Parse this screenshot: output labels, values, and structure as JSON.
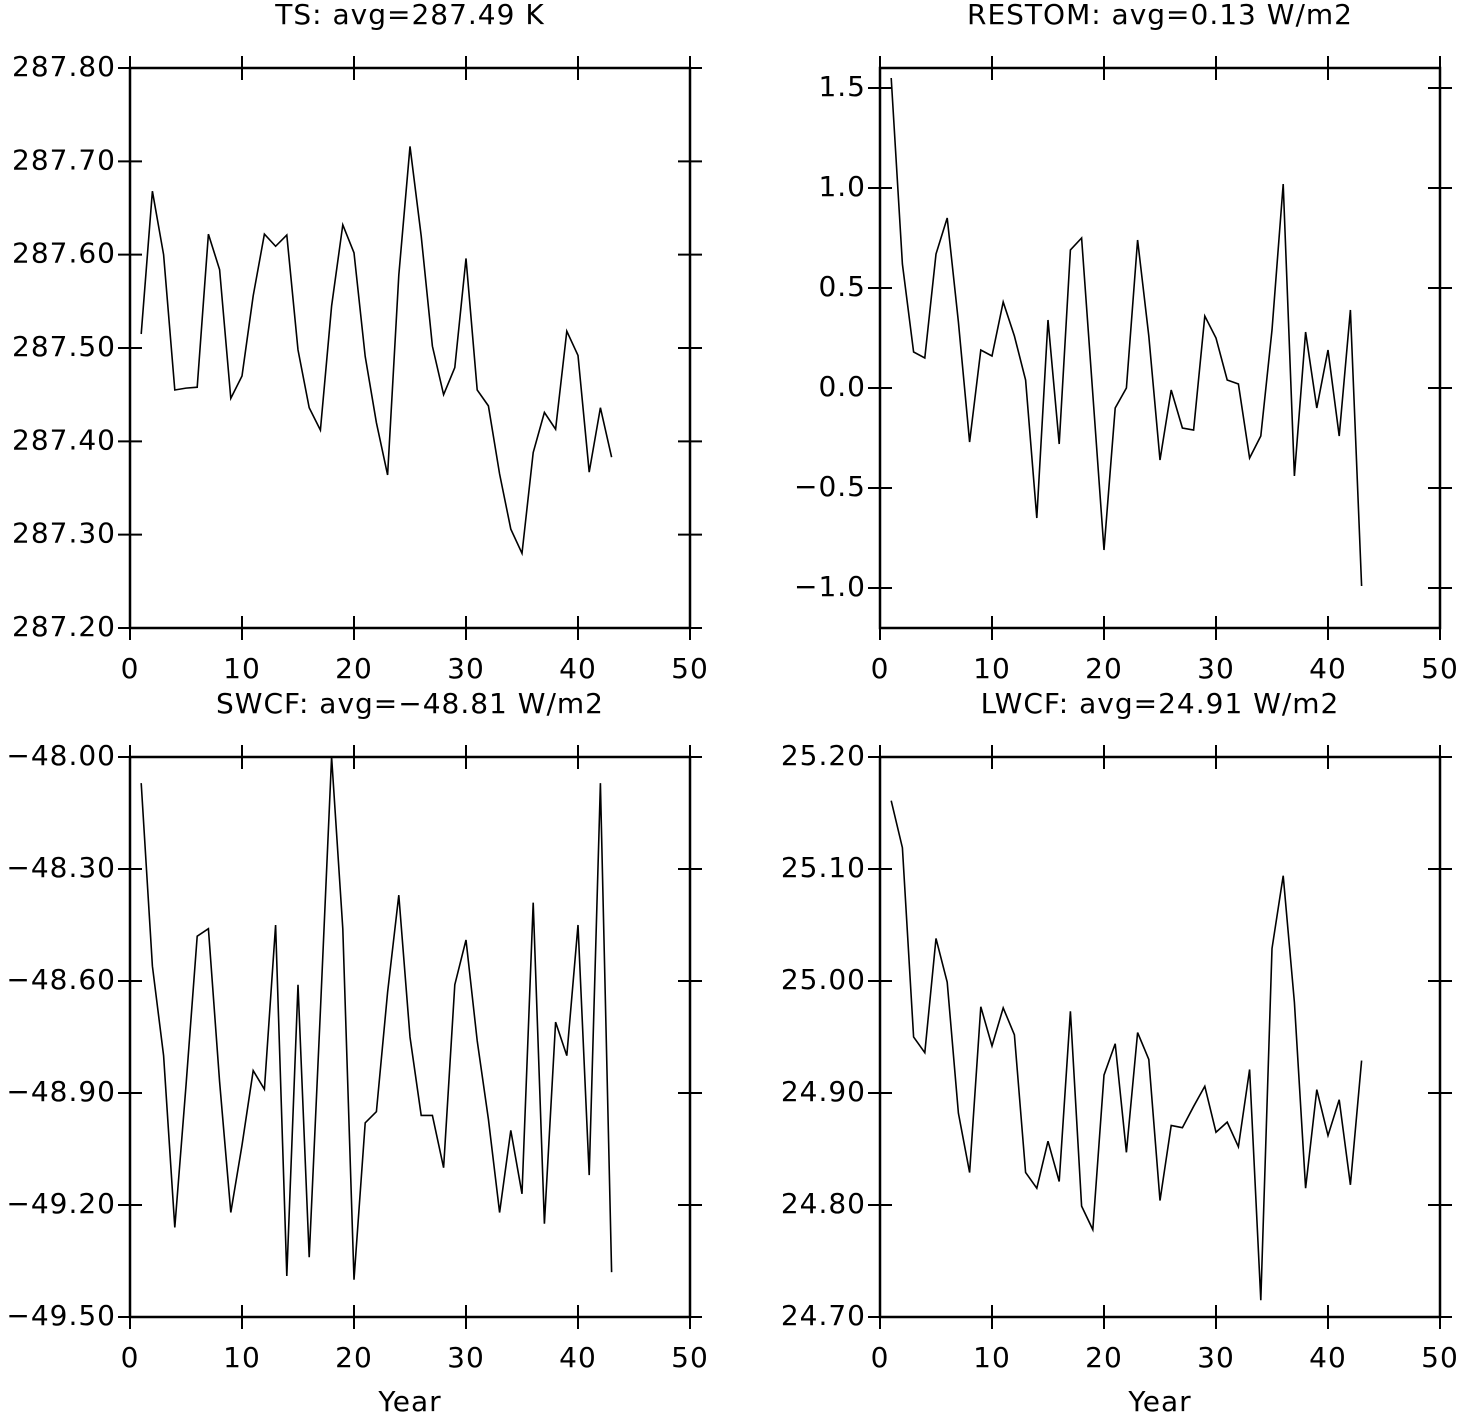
{
  "chart_data": [
    {
      "type": "line",
      "title": "TS: avg=287.49 K",
      "color": "#000000",
      "x": [
        1,
        2,
        3,
        4,
        5,
        6,
        7,
        8,
        9,
        10,
        11,
        12,
        13,
        14,
        15,
        16,
        17,
        18,
        19,
        20,
        21,
        22,
        23,
        24,
        25,
        26,
        27,
        28,
        29,
        30,
        31,
        32,
        33,
        34,
        35,
        36,
        37,
        38,
        39,
        40,
        41,
        42,
        43
      ],
      "values": [
        287.515,
        287.668,
        287.6,
        287.455,
        287.457,
        287.458,
        287.622,
        287.584,
        287.446,
        287.47,
        287.556,
        287.622,
        287.609,
        287.621,
        287.498,
        287.436,
        287.412,
        287.545,
        287.632,
        287.602,
        287.491,
        287.42,
        287.364,
        287.578,
        287.716,
        287.62,
        287.502,
        287.45,
        287.479,
        287.596,
        287.455,
        287.438,
        287.365,
        287.306,
        287.28,
        287.388,
        287.431,
        287.413,
        287.518,
        287.492,
        287.367,
        287.436,
        287.383
      ],
      "xlim": [
        0,
        50
      ],
      "xticks": [
        0,
        10,
        20,
        30,
        40,
        50
      ],
      "ylim": [
        287.2,
        287.8
      ],
      "yticks": [
        {
          "value": 287.2,
          "label": "287.20"
        },
        {
          "value": 287.3,
          "label": "287.30"
        },
        {
          "value": 287.4,
          "label": "287.40"
        },
        {
          "value": 287.5,
          "label": "287.50"
        },
        {
          "value": 287.6,
          "label": "287.60"
        },
        {
          "value": 287.7,
          "label": "287.70"
        },
        {
          "value": 287.8,
          "label": "287.80"
        }
      ]
    },
    {
      "type": "line",
      "title": "RESTOM: avg=0.13 W/m2",
      "color": "#000000",
      "x": [
        1,
        2,
        3,
        4,
        5,
        6,
        7,
        8,
        9,
        10,
        11,
        12,
        13,
        14,
        15,
        16,
        17,
        18,
        19,
        20,
        21,
        22,
        23,
        24,
        25,
        26,
        27,
        28,
        29,
        30,
        31,
        32,
        33,
        34,
        35,
        36,
        37,
        38,
        39,
        40,
        41,
        42,
        43
      ],
      "values": [
        1.55,
        0.62,
        0.18,
        0.15,
        0.67,
        0.85,
        0.33,
        -0.27,
        0.19,
        0.16,
        0.43,
        0.26,
        0.04,
        -0.65,
        0.34,
        -0.28,
        0.69,
        0.75,
        -0.03,
        -0.81,
        -0.1,
        0.0,
        0.74,
        0.26,
        -0.36,
        -0.01,
        -0.2,
        -0.21,
        0.36,
        0.25,
        0.04,
        0.02,
        -0.35,
        -0.24,
        0.29,
        1.02,
        -0.44,
        0.28,
        -0.1,
        0.19,
        -0.24,
        0.39,
        -0.99
      ],
      "xlim": [
        0,
        50
      ],
      "xticks": [
        0,
        10,
        20,
        30,
        40,
        50
      ],
      "ylim": [
        -1.2,
        1.6
      ],
      "yticks": [
        {
          "value": -1.0,
          "label": "−1.0"
        },
        {
          "value": -0.5,
          "label": "−0.5"
        },
        {
          "value": 0,
          "label": "0.0"
        },
        0.5,
        {
          "value": 1,
          "label": "1.0"
        },
        1.5
      ]
    },
    {
      "type": "line",
      "title": "SWCF: avg=−48.81 W/m2",
      "xlabel": "Year",
      "color": "#000000",
      "x": [
        1,
        2,
        3,
        4,
        5,
        6,
        7,
        8,
        9,
        10,
        11,
        12,
        13,
        14,
        15,
        16,
        17,
        18,
        19,
        20,
        21,
        22,
        23,
        24,
        25,
        26,
        27,
        28,
        29,
        30,
        31,
        32,
        33,
        34,
        35,
        36,
        37,
        38,
        39,
        40,
        41,
        42,
        43
      ],
      "values": [
        -48.07,
        -48.56,
        -48.8,
        -49.26,
        -48.88,
        -48.48,
        -48.46,
        -48.87,
        -49.22,
        -49.04,
        -48.84,
        -48.89,
        -48.45,
        -49.39,
        -48.61,
        -49.34,
        -48.68,
        -48.0,
        -48.46,
        -49.4,
        -48.98,
        -48.95,
        -48.63,
        -48.37,
        -48.75,
        -48.96,
        -48.96,
        -49.1,
        -48.61,
        -48.49,
        -48.76,
        -48.97,
        -49.22,
        -49.0,
        -49.17,
        -48.39,
        -49.25,
        -48.71,
        -48.8,
        -48.45,
        -49.12,
        -48.07,
        -49.38
      ],
      "xlim": [
        0,
        50
      ],
      "xticks": [
        0,
        10,
        20,
        30,
        40,
        50
      ],
      "ylim": [
        -49.5,
        -48.0
      ],
      "yticks": [
        {
          "value": -49.5,
          "label": "−49.50"
        },
        {
          "value": -49.2,
          "label": "−49.20"
        },
        {
          "value": -48.9,
          "label": "−48.90"
        },
        {
          "value": -48.6,
          "label": "−48.60"
        },
        {
          "value": -48.3,
          "label": "−48.30"
        },
        {
          "value": -48.0,
          "label": "−48.00"
        }
      ]
    },
    {
      "type": "line",
      "title": "LWCF: avg=24.91 W/m2",
      "xlabel": "Year",
      "color": "#000000",
      "x": [
        1,
        2,
        3,
        4,
        5,
        6,
        7,
        8,
        9,
        10,
        11,
        12,
        13,
        14,
        15,
        16,
        17,
        18,
        19,
        20,
        21,
        22,
        23,
        24,
        25,
        26,
        27,
        28,
        29,
        30,
        31,
        32,
        33,
        34,
        35,
        36,
        37,
        38,
        39,
        40,
        41,
        42,
        43
      ],
      "values": [
        25.161,
        25.119,
        24.95,
        24.936,
        25.038,
        24.999,
        24.882,
        24.829,
        24.977,
        24.942,
        24.976,
        24.952,
        24.829,
        24.815,
        24.857,
        24.821,
        24.973,
        24.799,
        24.778,
        24.916,
        24.944,
        24.847,
        24.954,
        24.93,
        24.804,
        24.871,
        24.869,
        24.888,
        24.906,
        24.865,
        24.874,
        24.852,
        24.921,
        24.715,
        25.029,
        25.094,
        24.981,
        24.815,
        24.903,
        24.862,
        24.894,
        24.818,
        24.929
      ],
      "xlim": [
        0,
        50
      ],
      "xticks": [
        0,
        10,
        20,
        30,
        40,
        50
      ],
      "ylim": [
        24.7,
        25.2
      ],
      "yticks": [
        {
          "value": 24.7,
          "label": "24.70"
        },
        {
          "value": 24.8,
          "label": "24.80"
        },
        {
          "value": 24.9,
          "label": "24.90"
        },
        {
          "value": 25.0,
          "label": "25.00"
        },
        {
          "value": 25.1,
          "label": "25.10"
        },
        {
          "value": 25.2,
          "label": "25.20"
        }
      ]
    }
  ]
}
